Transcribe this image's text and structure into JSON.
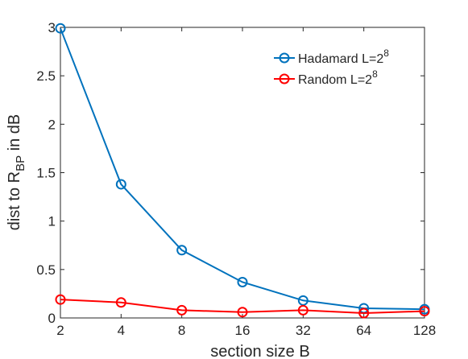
{
  "chart_data": {
    "type": "line",
    "title": "",
    "xlabel": "section size B",
    "ylabel": {
      "prefix": "dist to R",
      "subscript": "BP",
      "suffix": " in dB"
    },
    "x": [
      2,
      4,
      8,
      16,
      32,
      64,
      128
    ],
    "x_tick_labels": [
      "2",
      "4",
      "8",
      "16",
      "32",
      "64",
      "128"
    ],
    "x_scale": "log2",
    "xlim": [
      2,
      128
    ],
    "ylim": [
      0,
      3
    ],
    "y_ticks": [
      0,
      0.5,
      1,
      1.5,
      2,
      2.5,
      3
    ],
    "y_tick_labels": [
      "0",
      "0.5",
      "1",
      "1.5",
      "2",
      "2.5",
      "3"
    ],
    "grid": false,
    "legend_position": "top-right",
    "series": [
      {
        "name": "Hadamard L=2",
        "name_superscript": "8",
        "color": "#0072bd",
        "marker": "circle",
        "values": [
          2.99,
          1.38,
          0.7,
          0.37,
          0.18,
          0.1,
          0.09
        ]
      },
      {
        "name": "Random L=2",
        "name_superscript": "8",
        "color": "#ff0000",
        "marker": "circle",
        "values": [
          0.19,
          0.16,
          0.08,
          0.06,
          0.08,
          0.05,
          0.07
        ]
      }
    ]
  }
}
